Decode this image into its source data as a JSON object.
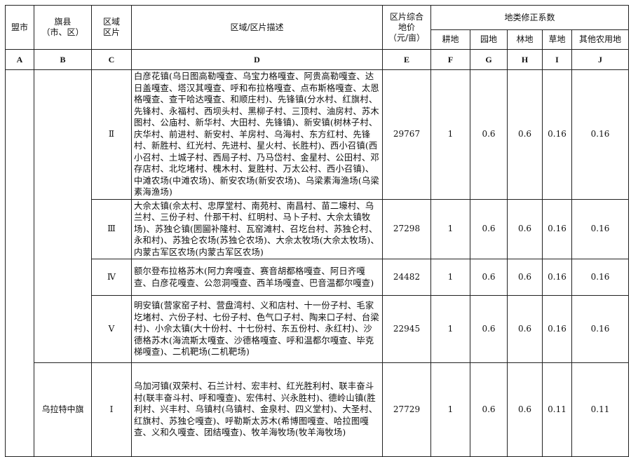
{
  "headers": {
    "a": "盟市",
    "b": "旗县\n（市、区）",
    "c": "区域\n区片",
    "d": "区域/区片描述",
    "e": "区片综合\n地价\n（元/亩）",
    "coef": "地类修正系数",
    "f": "耕地",
    "g": "园地",
    "h": "林地",
    "i": "草地",
    "j": "其他农用地"
  },
  "codes": [
    "A",
    "B",
    "C",
    "D",
    "E",
    "F",
    "G",
    "H",
    "I",
    "J"
  ],
  "rows": [
    {
      "league": "",
      "county": "",
      "zone": "Ⅱ",
      "desc": "白彦花镇(乌日图高勒嘎查、乌宝力格嘎查、阿贵高勒嘎查、达日盖嘎查、塔汉其嘎查、呼和布拉格嘎查、点布斯格嘎查、太恩格嘎查、查干哈达嘎查、和顺庄村)、先锋镇(分水村、红旗村、先锋村、永福村、西坝头村、黑柳子村、三顶村、油房村、苏木图村、公庙村、新华村、大田村、先锋镇)、新安镇(树林子村、庆华村、前进村、新安村、羊房村、乌海村、东方红村、先锋村、新胜村、红光村、先进村、星火村、长胜村)、西小召镇(西小召村、土城子村、西局子村、乃马岱村、金星村、公田村、邓存店村、北圪堵村、槐木村、复胜村、万太公村、西小召镇)、中滩农场(中滩农场)、新安农场(新安农场)、乌梁素海渔场(乌梁素海渔场)",
      "price": "29767",
      "f": "1",
      "g": "0.6",
      "h": "0.6",
      "i": "0.16",
      "j": "0.16"
    },
    {
      "zone": "Ⅲ",
      "desc": "大佘太镇(佘太村、忠厚堂村、南苑村、南昌村、苗二壕村、乌兰村、三份子村、什那干村、红明村、马卜子村、大佘太镇牧场)、苏独仑镇(圐圙补隆村、瓦窑滩村、召圪台村、苏独仑村、永和村)、苏独仑农场(苏独仑农场)、大佘太牧场(大佘太牧场)、内蒙古军区农场(内蒙古军区农场)",
      "price": "27298",
      "f": "1",
      "g": "0.6",
      "h": "0.6",
      "i": "0.16",
      "j": "0.16"
    },
    {
      "zone": "Ⅳ",
      "desc": "额尔登布拉格苏木(阿力奔嘎查、赛音胡都格嘎查、阿日齐嘎查、白彦花嘎查、公忽洞嘎查、西羊场嘎查、巴音温都尔嘎查)",
      "price": "24482",
      "f": "1",
      "g": "0.6",
      "h": "0.6",
      "i": "0.16",
      "j": "0.16"
    },
    {
      "zone": "Ⅴ",
      "desc": "明安镇(营家窑子村、营盘湾村、义和店村、十一份子村、毛家圪堵村、六份子村、七份子村、色气口子村、陶来口子村、台梁村)、小佘太镇(大十份村、十七份村、东五份村、永红村)、沙德格苏木(海流斯太嘎查、沙德格嘎查、呼和温都尔嘎查、毕克梯嘎查)、二机靶场(二机靶场)",
      "price": "22945",
      "f": "1",
      "g": "0.6",
      "h": "0.6",
      "i": "0.16",
      "j": "0.16"
    },
    {
      "county": "乌拉特中旗",
      "zone": "Ⅰ",
      "desc": "乌加河镇(双荣村、石兰计村、宏丰村、红光胜利村、联丰奋斗村(联丰奋斗村、呼和嘎查)、宏伟村、兴永胜村)、德岭山镇(胜利村、兴丰村、乌镇村(乌镇村、金泉村、四义堂村)、大圣村、红旗村、苏独仑嘎查)、呼勒斯太苏木(希博图嘎查、哈拉图嘎查、义和久嘎查、团结嘎查)、牧羊海牧场(牧羊海牧场)",
      "price": "27729",
      "f": "1",
      "g": "0.6",
      "h": "0.6",
      "i": "0.11",
      "j": "0.11"
    }
  ]
}
